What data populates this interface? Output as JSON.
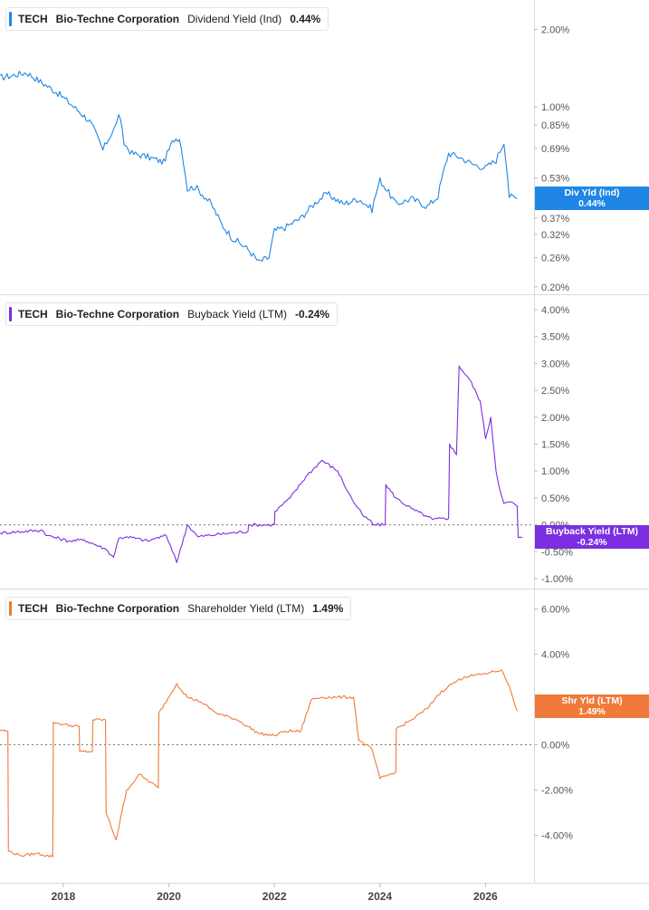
{
  "chart_data": [
    {
      "type": "line",
      "ticker": "TECH",
      "company": "Bio-Techne Corporation",
      "metric": "Dividend Yield (Ind)",
      "current_value": "0.44%",
      "tag_label": "Div Yld (Ind)",
      "color": "#1f86e6",
      "scale": "log",
      "ylim": [
        0.195,
        2.4
      ],
      "y_ticks": [
        2.0,
        1.0,
        0.85,
        0.69,
        0.53,
        0.37,
        0.32,
        0.26,
        0.2
      ],
      "y_tick_labels": [
        "2.00%",
        "1.00%",
        "0.85%",
        "0.69%",
        "0.53%",
        "0.37%",
        "0.32%",
        "0.26%",
        "0.20%"
      ],
      "zero_line": false,
      "x": [
        2016.8,
        2017.0,
        2017.3,
        2017.6,
        2017.9,
        2018.2,
        2018.5,
        2018.75,
        2019.0,
        2019.05,
        2019.15,
        2019.3,
        2019.6,
        2019.9,
        2020.1,
        2020.2,
        2020.35,
        2020.5,
        2020.8,
        2021.0,
        2021.2,
        2021.5,
        2021.7,
        2021.9,
        2022.0,
        2022.2,
        2022.5,
        2022.8,
        2023.0,
        2023.3,
        2023.6,
        2023.85,
        2024.0,
        2024.3,
        2024.6,
        2024.9,
        2025.1,
        2025.3,
        2025.5,
        2025.75,
        2026.0,
        2026.2,
        2026.35,
        2026.45,
        2026.6
      ],
      "y": [
        1.3,
        1.32,
        1.36,
        1.24,
        1.13,
        1.0,
        0.88,
        0.68,
        0.85,
        0.95,
        0.72,
        0.66,
        0.64,
        0.61,
        0.75,
        0.76,
        0.48,
        0.49,
        0.42,
        0.35,
        0.31,
        0.28,
        0.25,
        0.26,
        0.33,
        0.34,
        0.37,
        0.43,
        0.46,
        0.42,
        0.44,
        0.4,
        0.52,
        0.42,
        0.44,
        0.41,
        0.45,
        0.66,
        0.64,
        0.6,
        0.58,
        0.62,
        0.73,
        0.45,
        0.44
      ]
    },
    {
      "type": "line",
      "ticker": "TECH",
      "company": "Bio-Techne Corporation",
      "metric": "Buyback Yield (LTM)",
      "current_value": "-0.24%",
      "tag_label": "Buyback Yield (LTM)",
      "color": "#7b2fe0",
      "scale": "linear",
      "ylim": [
        -1.1,
        4.1
      ],
      "y_ticks": [
        4.0,
        3.5,
        3.0,
        2.5,
        2.0,
        1.5,
        1.0,
        0.5,
        0.0,
        -0.5,
        -1.0
      ],
      "y_tick_labels": [
        "4.00%",
        "3.50%",
        "3.00%",
        "2.50%",
        "2.00%",
        "1.50%",
        "1.00%",
        "0.50%",
        "0.00%",
        "-0.50%",
        "-1.00%"
      ],
      "zero_line": true,
      "x": [
        2016.8,
        2017.6,
        2017.7,
        2018.1,
        2018.4,
        2018.8,
        2018.95,
        2019.05,
        2019.2,
        2019.6,
        2019.75,
        2019.95,
        2020.1,
        2020.15,
        2020.35,
        2020.55,
        2020.9,
        2021.2,
        2021.5,
        2021.51,
        2022.0,
        2022.01,
        2022.3,
        2022.6,
        2022.9,
        2023.2,
        2023.4,
        2023.55,
        2023.7,
        2023.85,
        2023.86,
        2024.1,
        2024.11,
        2024.3,
        2024.6,
        2024.9,
        2025.0,
        2025.3,
        2025.32,
        2025.45,
        2025.5,
        2025.7,
        2025.9,
        2026.0,
        2026.1,
        2026.2,
        2026.3,
        2026.35,
        2026.5,
        2026.6,
        2026.62,
        2026.7
      ],
      "y": [
        -0.15,
        -0.1,
        -0.2,
        -0.3,
        -0.28,
        -0.45,
        -0.6,
        -0.25,
        -0.22,
        -0.3,
        -0.25,
        -0.2,
        -0.55,
        -0.7,
        0.0,
        -0.22,
        -0.18,
        -0.15,
        -0.12,
        0.0,
        0.0,
        0.25,
        0.5,
        0.9,
        1.2,
        1.0,
        0.6,
        0.35,
        0.15,
        0.05,
        0.0,
        0.0,
        0.75,
        0.5,
        0.3,
        0.15,
        0.1,
        0.12,
        1.5,
        1.3,
        2.95,
        2.7,
        2.3,
        1.6,
        2.0,
        1.0,
        0.55,
        0.4,
        0.42,
        0.35,
        -0.24,
        -0.24
      ]
    },
    {
      "type": "line",
      "ticker": "TECH",
      "company": "Bio-Techne Corporation",
      "metric": "Shareholder Yield (LTM)",
      "current_value": "1.49%",
      "tag_label": "Shr Yld (LTM)",
      "color": "#f07a3a",
      "scale": "linear",
      "ylim": [
        -5.5,
        6.5
      ],
      "y_ticks": [
        6.0,
        4.0,
        2.0,
        0.0,
        -2.0,
        -4.0
      ],
      "y_tick_labels": [
        "6.00%",
        "4.00%",
        "2.00%",
        "0.00%",
        "-2.00%",
        "-4.00%"
      ],
      "zero_line": true,
      "x": [
        2016.8,
        2016.95,
        2016.96,
        2017.2,
        2017.5,
        2017.8,
        2017.81,
        2018.0,
        2018.3,
        2018.31,
        2018.55,
        2018.56,
        2018.8,
        2018.81,
        2019.0,
        2019.2,
        2019.45,
        2019.55,
        2019.8,
        2019.81,
        2020.05,
        2020.15,
        2020.35,
        2020.6,
        2020.9,
        2021.3,
        2021.7,
        2022.0,
        2022.2,
        2022.5,
        2022.7,
        2022.9,
        2023.2,
        2023.5,
        2023.6,
        2023.85,
        2024.0,
        2024.3,
        2024.31,
        2024.6,
        2024.9,
        2025.1,
        2025.3,
        2025.6,
        2025.9,
        2026.1,
        2026.3,
        2026.45,
        2026.6
      ],
      "y": [
        0.65,
        0.6,
        -4.7,
        -4.9,
        -4.8,
        -4.95,
        1.0,
        0.9,
        0.8,
        -0.3,
        -0.3,
        1.1,
        1.1,
        -3.0,
        -4.2,
        -2.0,
        -1.3,
        -1.5,
        -1.9,
        1.4,
        2.3,
        2.7,
        2.1,
        1.9,
        1.4,
        1.1,
        0.5,
        0.4,
        0.6,
        0.6,
        2.0,
        2.1,
        2.1,
        2.1,
        0.2,
        -0.2,
        -1.5,
        -1.2,
        0.7,
        1.1,
        1.6,
        2.2,
        2.6,
        3.0,
        3.1,
        3.2,
        3.3,
        2.6,
        1.49
      ]
    }
  ],
  "x_axis": {
    "ticks": [
      2018,
      2020,
      2022,
      2024,
      2026
    ],
    "tick_labels": [
      "2018",
      "2020",
      "2022",
      "2024",
      "2026"
    ],
    "xlim": [
      2016.8,
      2026.92
    ]
  }
}
